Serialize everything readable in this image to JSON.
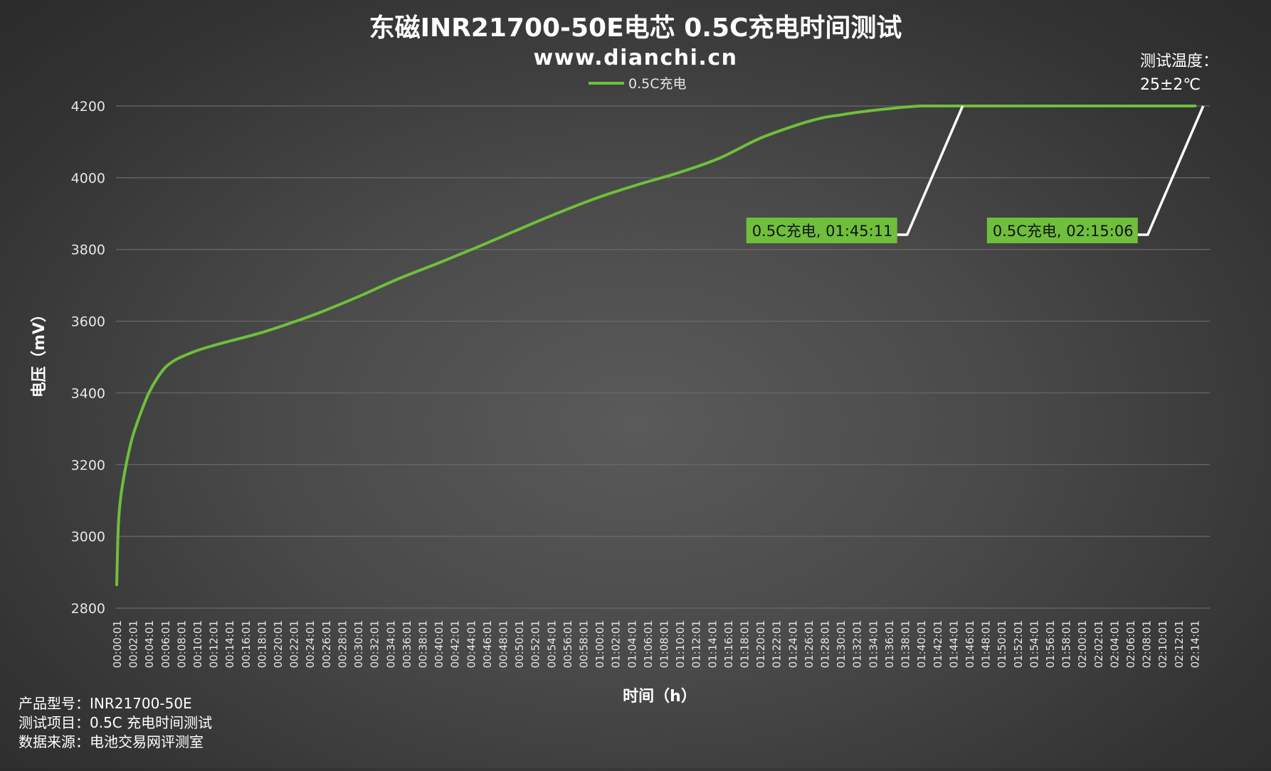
{
  "chart_data": {
    "type": "line",
    "title": "东磁INR21700-50E电芯 0.5C充电时间测试",
    "subtitle": "www.dianchi.cn",
    "xlabel": "时间（h）",
    "ylabel": "电压（mV）",
    "ylim": [
      2800,
      4200
    ],
    "yticks": [
      2800,
      3000,
      3200,
      3400,
      3600,
      3800,
      4000,
      4200
    ],
    "grid": true,
    "legend_position": "top-center",
    "colors": {
      "series": "#6fbf3c",
      "grid": "#6a6a6a",
      "axis": "#bfbfbf",
      "callout": "#ffffff"
    },
    "x_tick_labels": [
      "00:00:01",
      "00:02:01",
      "00:04:01",
      "00:06:01",
      "00:08:01",
      "00:10:01",
      "00:12:01",
      "00:14:01",
      "00:16:01",
      "00:18:01",
      "00:20:01",
      "00:22:01",
      "00:24:01",
      "00:26:01",
      "00:28:01",
      "00:30:01",
      "00:32:01",
      "00:34:01",
      "00:36:01",
      "00:38:01",
      "00:40:01",
      "00:42:01",
      "00:44:01",
      "00:46:01",
      "00:48:01",
      "00:50:01",
      "00:52:01",
      "00:54:01",
      "00:56:01",
      "00:58:01",
      "01:00:01",
      "01:02:01",
      "01:04:01",
      "01:06:01",
      "01:08:01",
      "01:10:01",
      "01:12:01",
      "01:14:01",
      "01:16:01",
      "01:18:01",
      "01:20:01",
      "01:22:01",
      "01:24:01",
      "01:26:01",
      "01:28:01",
      "01:30:01",
      "01:32:01",
      "01:34:01",
      "01:36:01",
      "01:38:01",
      "01:40:01",
      "01:42:01",
      "01:44:01",
      "01:46:01",
      "01:48:01",
      "01:50:01",
      "01:52:01",
      "01:54:01",
      "01:56:01",
      "01:58:01",
      "02:00:01",
      "02:02:01",
      "02:04:01",
      "02:06:01",
      "02:08:01",
      "02:10:01",
      "02:12:01",
      "02:14:01"
    ],
    "series": [
      {
        "name": "0.5C充电",
        "x_minutes": [
          0,
          0.2,
          0.5,
          1,
          1.5,
          2,
          3,
          4,
          5,
          6,
          7,
          8,
          10,
          12,
          15,
          18,
          21,
          25,
          30,
          35,
          40,
          45,
          50,
          55,
          60,
          65,
          70,
          75,
          80,
          85,
          88,
          90,
          92,
          95,
          100,
          105.18,
          110,
          115,
          120,
          125,
          130,
          134.1
        ],
        "values": [
          2865,
          3030,
          3110,
          3180,
          3235,
          3280,
          3345,
          3400,
          3440,
          3470,
          3488,
          3500,
          3518,
          3532,
          3550,
          3568,
          3590,
          3622,
          3668,
          3718,
          3762,
          3808,
          3856,
          3903,
          3946,
          3982,
          4015,
          4055,
          4110,
          4150,
          4168,
          4175,
          4182,
          4190,
          4200,
          4200,
          4200,
          4200,
          4200,
          4200,
          4200,
          4200
        ]
      }
    ],
    "annotations": [
      {
        "label": "0.5C充电, 01:45:11",
        "x_minutes": 105.18,
        "y": 4200
      },
      {
        "label": "0.5C充电, 02:15:06",
        "x_minutes": 135.1,
        "y": 4200
      }
    ],
    "temperature_note": {
      "line1": "测试温度：",
      "line2": "25±2℃"
    }
  },
  "footer": {
    "model": "产品型号：INR21700-50E",
    "test_item": "测试项目：0.5C 充电时间测试",
    "source": "数据来源：电池交易网评测室"
  }
}
